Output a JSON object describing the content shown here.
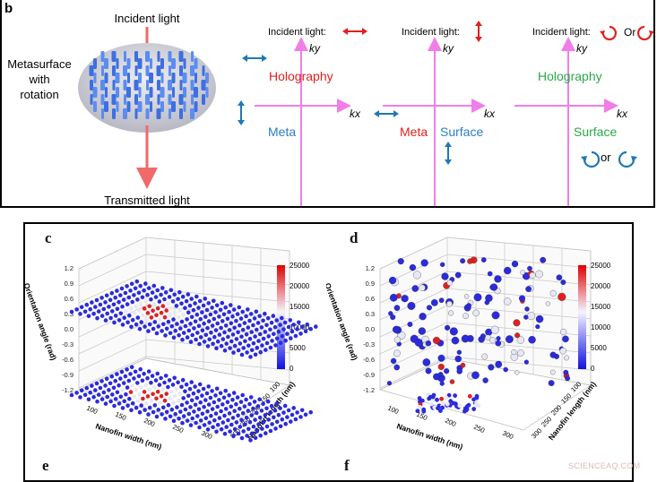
{
  "panel_b": {
    "letter": "b",
    "incident_light": "Incident light",
    "transmitted_light": "Transmitted light",
    "metasurface_label": [
      "Metasurface",
      "with",
      "rotation"
    ],
    "diagrams": [
      {
        "incident": "Incident light:",
        "ky": "ky",
        "kx": "kx",
        "top_word": "Holography",
        "bottom_left": "Meta",
        "bottom_right": ""
      },
      {
        "incident": "Incident light:",
        "ky": "ky",
        "kx": "kx",
        "top_word": "",
        "bottom_left": "Meta",
        "bottom_right": "Surface"
      },
      {
        "incident": "Incident light:",
        "or_text": "Or",
        "ky": "ky",
        "kx": "kx",
        "top_word": "Holography",
        "bottom_left": "",
        "bottom_right": "Surface",
        "bottom_or": "or"
      }
    ],
    "colors": {
      "red": "#e02020",
      "blue": "#1f78b4",
      "magenta": "#f07ee8",
      "green": "#2aa84a",
      "meta_blue": "#2a7fc0"
    }
  },
  "scatter_panels": [
    {
      "letter": "c",
      "colorbar_ticks": [
        "25000",
        "20000",
        "15000",
        "10000",
        "5000",
        "0"
      ],
      "z_ticks": [
        "1.2",
        "0.9",
        "0.6",
        "0.3",
        "0.0",
        "-0.3",
        "-0.6",
        "-0.9",
        "-1.2"
      ],
      "zlabel": "Orientation angle (rad)",
      "x_ticks": [
        "100",
        "150",
        "200",
        "250",
        "300"
      ],
      "xlabel": "Nanofin width (nm)",
      "y_ticks": [
        "100",
        "150",
        "200",
        "250",
        "300"
      ],
      "ylabel": "Nanofin length (nm)"
    },
    {
      "letter": "d",
      "colorbar_ticks": [
        "25000",
        "20000",
        "15000",
        "10000",
        "5000",
        "0"
      ],
      "z_ticks": [
        "1.2",
        "0.9",
        "0.6",
        "0.3",
        "0.0",
        "-0.3",
        "-0.6",
        "-0.9",
        "-1.2"
      ],
      "zlabel": "Orientation angle (rad)",
      "x_ticks": [
        "100",
        "150",
        "200",
        "250",
        "300"
      ],
      "xlabel": "Nanofin width (nm)",
      "y_ticks": [
        "100",
        "150",
        "200",
        "250",
        "300"
      ],
      "ylabel": "Nanofin length (nm)"
    }
  ],
  "bottom_letters": [
    "e",
    "f"
  ],
  "watermark": "SCIENCEAQ.COM"
}
